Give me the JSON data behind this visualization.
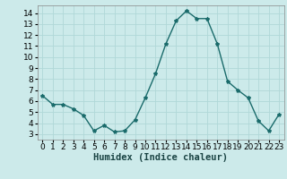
{
  "x": [
    0,
    1,
    2,
    3,
    4,
    5,
    6,
    7,
    8,
    9,
    10,
    11,
    12,
    13,
    14,
    15,
    16,
    17,
    18,
    19,
    20,
    21,
    22,
    23
  ],
  "y": [
    6.5,
    5.7,
    5.7,
    5.3,
    4.7,
    3.3,
    3.8,
    3.2,
    3.3,
    4.3,
    6.3,
    8.5,
    11.2,
    13.3,
    14.2,
    13.5,
    13.5,
    11.2,
    7.8,
    7.0,
    6.3,
    4.2,
    3.3,
    4.8
  ],
  "line_color": "#1a6b6b",
  "marker": "*",
  "marker_size": 3,
  "background_color": "#cceaea",
  "grid_color": "#b0d8d8",
  "xlabel": "Humidex (Indice chaleur)",
  "xlabel_fontsize": 7.5,
  "xlim": [
    -0.5,
    23.5
  ],
  "ylim": [
    2.5,
    14.7
  ],
  "yticks": [
    3,
    4,
    5,
    6,
    7,
    8,
    9,
    10,
    11,
    12,
    13,
    14
  ],
  "xtick_labels": [
    "0",
    "1",
    "2",
    "3",
    "4",
    "5",
    "6",
    "7",
    "8",
    "9",
    "10",
    "11",
    "12",
    "13",
    "14",
    "15",
    "16",
    "17",
    "18",
    "19",
    "20",
    "21",
    "22",
    "23"
  ],
  "tick_fontsize": 6.5,
  "line_width": 1.0
}
